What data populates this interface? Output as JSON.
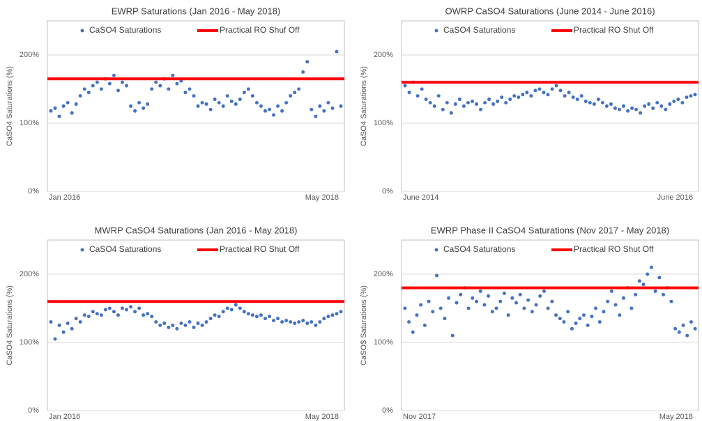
{
  "chart_data": [
    {
      "type": "scatter",
      "title": "EWRP Saturations (Jan 2016 - May 2018)",
      "y_label": "CaSO4 Saturations (%)",
      "x_labels": [
        "Jan 2016",
        "May 2018"
      ],
      "ylim": [
        0,
        250
      ],
      "yticks": [
        {
          "value": 0,
          "label": "0%"
        },
        {
          "value": 100,
          "label": "100%"
        },
        {
          "value": 200,
          "label": "200%"
        }
      ],
      "series": [
        {
          "name": "CaSO4 Saturations",
          "color": "#4472c4",
          "values": [
            118,
            122,
            110,
            125,
            130,
            115,
            128,
            140,
            150,
            145,
            155,
            160,
            150,
            165,
            158,
            170,
            148,
            160,
            155,
            125,
            118,
            130,
            122,
            128,
            150,
            160,
            155,
            165,
            150,
            170,
            158,
            162,
            145,
            150,
            140,
            125,
            130,
            128,
            120,
            135,
            130,
            125,
            140,
            132,
            128,
            135,
            145,
            150,
            140,
            130,
            125,
            118,
            120,
            112,
            125,
            118,
            130,
            140,
            145,
            150,
            175,
            190,
            120,
            110,
            125,
            118,
            130,
            122,
            205,
            125
          ]
        },
        {
          "name": "Practical RO Shuf Off",
          "color": "#ff0000",
          "type": "hline",
          "value": 165
        }
      ]
    },
    {
      "type": "scatter",
      "title": "OWRP CaSO4 Saturations (June 2014 - June 2016)",
      "y_label": "CaSO4 Saturations (%)",
      "x_labels": [
        "June 2014",
        "June 2016"
      ],
      "ylim": [
        0,
        250
      ],
      "yticks": [
        {
          "value": 0,
          "label": "0%"
        },
        {
          "value": 100,
          "label": "100%"
        },
        {
          "value": 200,
          "label": "200%"
        }
      ],
      "series": [
        {
          "name": "CaSO4 Saturations",
          "color": "#4472c4",
          "values": [
            155,
            145,
            160,
            140,
            150,
            135,
            130,
            125,
            140,
            120,
            130,
            115,
            128,
            135,
            125,
            130,
            132,
            128,
            120,
            130,
            135,
            128,
            132,
            138,
            130,
            135,
            140,
            138,
            142,
            145,
            140,
            148,
            150,
            145,
            142,
            150,
            155,
            148,
            140,
            145,
            138,
            135,
            140,
            132,
            130,
            128,
            135,
            130,
            125,
            128,
            122,
            120,
            125,
            118,
            122,
            120,
            115,
            125,
            128,
            122,
            130,
            125,
            120,
            128,
            132,
            135,
            130,
            138,
            140,
            142
          ]
        },
        {
          "name": "Practical RO Shut Off",
          "color": "#ff0000",
          "type": "hline",
          "value": 160
        }
      ]
    },
    {
      "type": "scatter",
      "title": "MWRP CaSO4 Saturations  (Jan 2016 - May 2018)",
      "y_label": "CaSO4 Saturations (%)",
      "x_labels": [
        "Jan 2016",
        "May 2018"
      ],
      "ylim": [
        0,
        250
      ],
      "yticks": [
        {
          "value": 0,
          "label": "0%"
        },
        {
          "value": 100,
          "label": "100%"
        },
        {
          "value": 200,
          "label": "200%"
        }
      ],
      "series": [
        {
          "name": "CaSO4 Saturations",
          "color": "#4472c4",
          "values": [
            130,
            105,
            125,
            115,
            128,
            120,
            135,
            130,
            140,
            138,
            145,
            142,
            140,
            148,
            150,
            145,
            140,
            150,
            148,
            152,
            145,
            150,
            140,
            142,
            138,
            130,
            125,
            128,
            122,
            125,
            120,
            128,
            125,
            130,
            122,
            128,
            125,
            130,
            135,
            140,
            138,
            145,
            150,
            148,
            155,
            150,
            145,
            142,
            140,
            138,
            140,
            135,
            138,
            132,
            135,
            130,
            132,
            130,
            128,
            130,
            132,
            128,
            130,
            125,
            130,
            135,
            138,
            140,
            142,
            145
          ]
        },
        {
          "name": "Practical RO Shut Off",
          "color": "#ff0000",
          "type": "hline",
          "value": 160
        }
      ]
    },
    {
      "type": "scatter",
      "title": "EWRP Phase II CaSO4 Saturations  (Nov 2017 - May 2018)",
      "y_label": "CaSO$ Saturations (%)",
      "x_labels": [
        "Nov 2017",
        "May 2018"
      ],
      "ylim": [
        0,
        250
      ],
      "yticks": [
        {
          "value": 0,
          "label": "0%"
        },
        {
          "value": 100,
          "label": "100%"
        },
        {
          "value": 200,
          "label": "200%"
        }
      ],
      "series": [
        {
          "name": "CaSO4 Saturations",
          "color": "#4472c4",
          "values": [
            150,
            130,
            115,
            140,
            155,
            125,
            160,
            145,
            198,
            150,
            135,
            165,
            110,
            158,
            170,
            180,
            150,
            165,
            160,
            175,
            155,
            168,
            145,
            150,
            160,
            172,
            140,
            165,
            158,
            170,
            150,
            162,
            145,
            155,
            168,
            175,
            150,
            160,
            140,
            135,
            130,
            145,
            120,
            128,
            135,
            140,
            125,
            138,
            150,
            130,
            145,
            160,
            175,
            155,
            140,
            165,
            180,
            150,
            170,
            190,
            185,
            200,
            210,
            175,
            195,
            170,
            180,
            160,
            120,
            115,
            125,
            110,
            130,
            120
          ]
        },
        {
          "name": "Practical RO Shut Off",
          "color": "#ff0000",
          "type": "hline",
          "value": 180
        }
      ]
    }
  ]
}
